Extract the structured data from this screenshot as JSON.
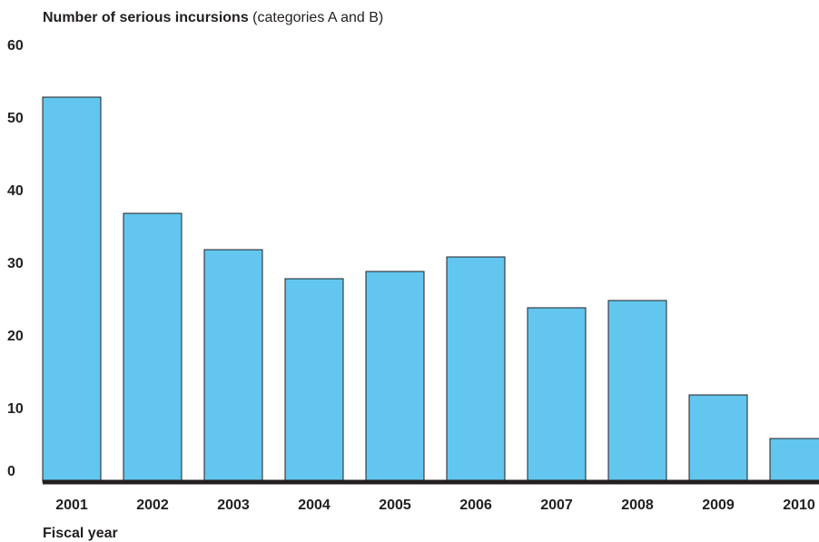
{
  "chart_data": {
    "type": "bar",
    "title": "Number of serious incursions",
    "subtitle": "(categories A and B)",
    "x_label": "Fiscal year",
    "categories": [
      "2001",
      "2002",
      "2003",
      "2004",
      "2005",
      "2006",
      "2007",
      "2008",
      "2009",
      "2010"
    ],
    "values": [
      53,
      37,
      32,
      28,
      29,
      31,
      24,
      25,
      12,
      6
    ],
    "color": "#63c6ee",
    "ylim": [
      0,
      60
    ],
    "yticks": [
      0,
      10,
      20,
      30,
      40,
      50,
      60
    ],
    "grid": false
  }
}
